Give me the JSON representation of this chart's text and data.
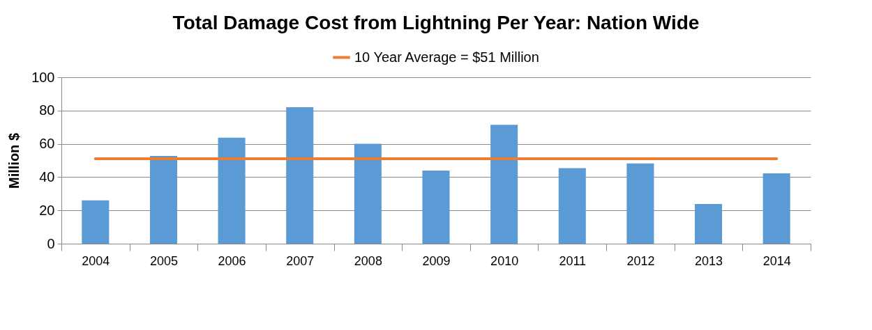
{
  "chart_data": {
    "type": "bar",
    "title": "Total Damage Cost from Lightning Per Year: Nation Wide",
    "ylabel": "Million $",
    "categories": [
      "2004",
      "2005",
      "2006",
      "2007",
      "2008",
      "2009",
      "2010",
      "2011",
      "2012",
      "2013",
      "2014"
    ],
    "series": [
      {
        "color": "#5b9bd5",
        "values": [
          26,
          52.7,
          63.7,
          82,
          60,
          43.9,
          71.4,
          45.4,
          48.2,
          23.8,
          42.3
        ]
      },
      {
        "type": "line",
        "name": "10 Year Average = $51 Million",
        "color": "#ed7d31",
        "values": [
          51,
          51,
          51,
          51,
          51,
          51,
          51,
          51,
          51,
          51,
          51
        ]
      }
    ],
    "ylim": [
      0,
      100
    ],
    "yticks": [
      0,
      20,
      40,
      60,
      80,
      100
    ],
    "grid": "y",
    "legend": "top"
  }
}
